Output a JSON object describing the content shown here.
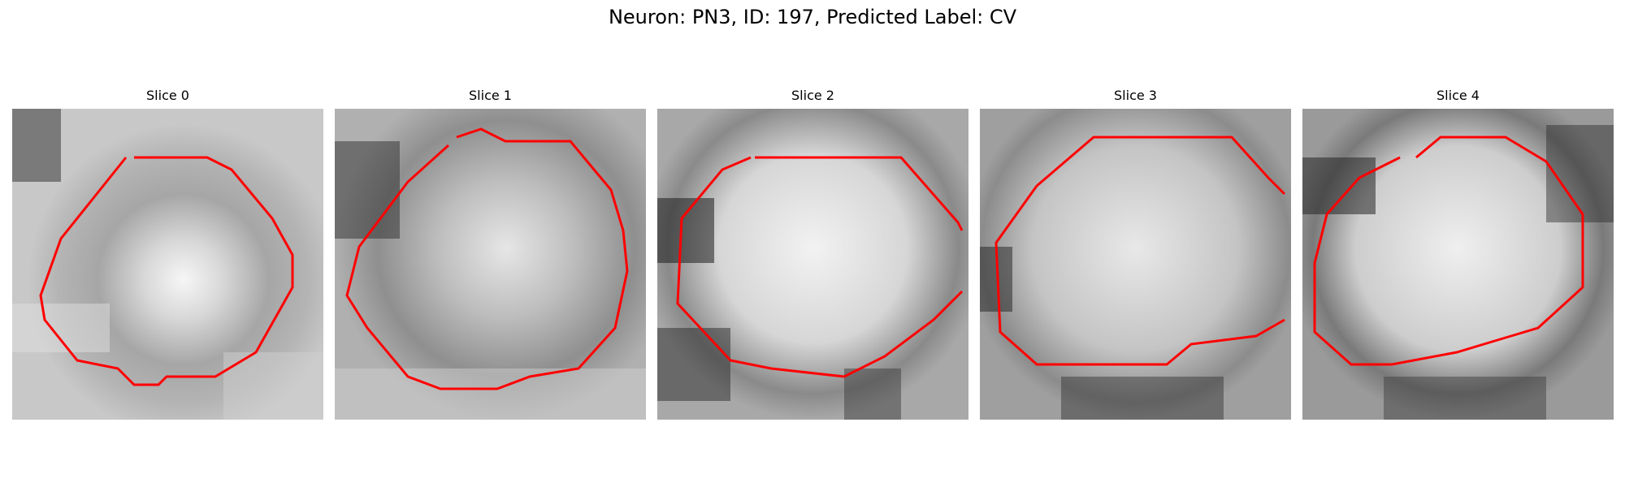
{
  "figure": {
    "title": "Neuron: PN3, ID: 197, Predicted Label: CV"
  },
  "slices": [
    {
      "title": "Slice 0"
    },
    {
      "title": "Slice 1"
    },
    {
      "title": "Slice 2"
    },
    {
      "title": "Slice 3"
    },
    {
      "title": "Slice 4"
    }
  ],
  "colors": {
    "contour": "#ff0000",
    "background": "#ffffff",
    "colormap": "grayscale"
  }
}
